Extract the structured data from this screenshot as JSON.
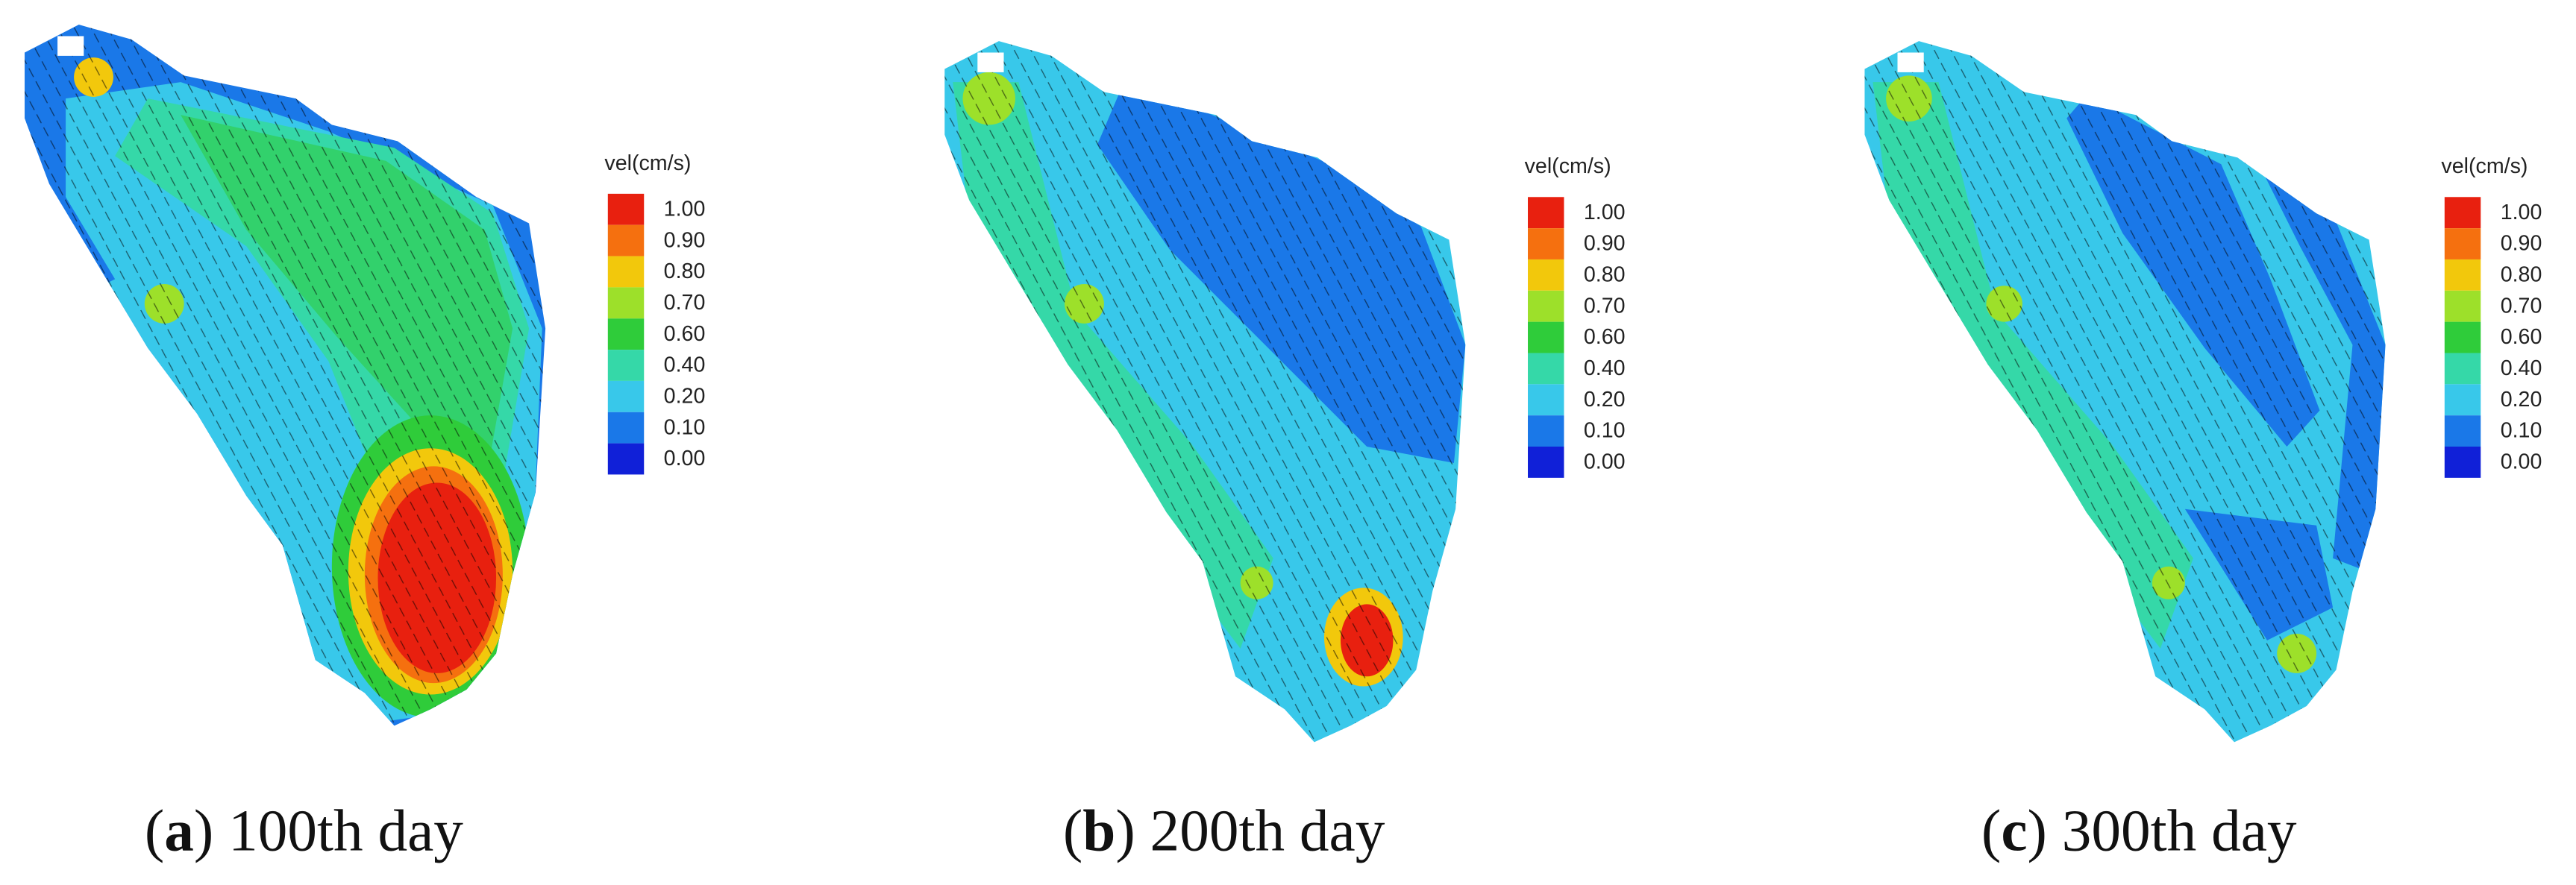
{
  "legend": {
    "title": "vel(cm/s)",
    "levels": [
      {
        "label": "1.00",
        "color": "#e8200f"
      },
      {
        "label": "0.90",
        "color": "#f5700f"
      },
      {
        "label": "0.80",
        "color": "#f2c80c"
      },
      {
        "label": "0.70",
        "color": "#9de02a"
      },
      {
        "label": "0.60",
        "color": "#2fcc3a"
      },
      {
        "label": "0.40",
        "color": "#35d8a8"
      },
      {
        "label": "0.20",
        "color": "#38c8ea"
      },
      {
        "label": "0.10",
        "color": "#1a78e8"
      },
      {
        "label": "0.00",
        "color": "#1020d8"
      }
    ]
  },
  "panels": [
    {
      "caption": [
        "(",
        "a",
        ") 100th day"
      ]
    },
    {
      "caption": [
        "(",
        "b",
        ") 200th day"
      ]
    },
    {
      "caption": [
        "(",
        "c",
        ") 300th day"
      ]
    }
  ]
}
